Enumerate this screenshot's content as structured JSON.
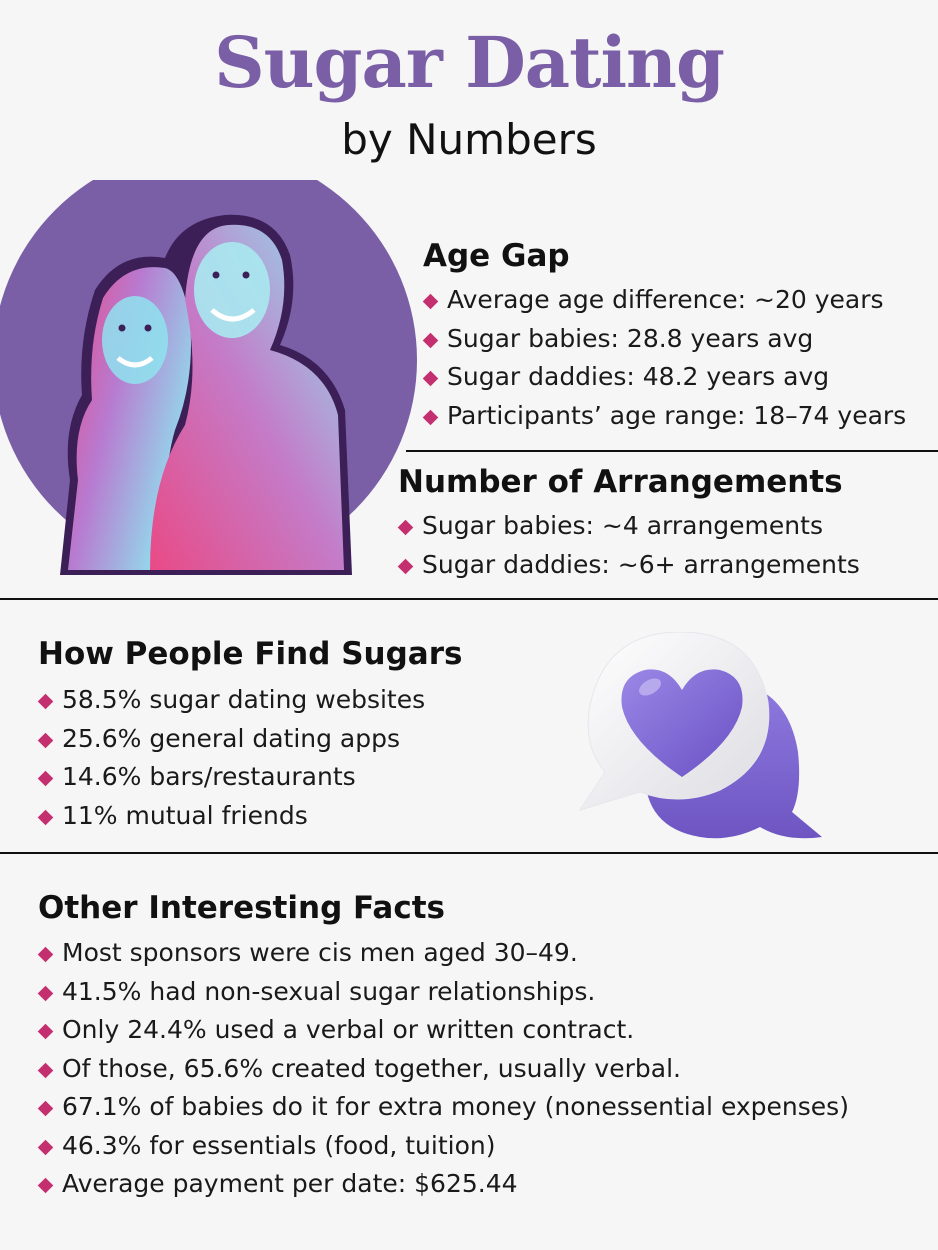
{
  "header": {
    "title": "Sugar Dating",
    "subtitle": "by Numbers"
  },
  "colors": {
    "title": "#7a5fa6",
    "bullet": "#c4306f",
    "circle": "#7a5fa6",
    "photo_cyan": "#8fe3ee",
    "photo_pink": "#e94a86",
    "heart": "#7f6bd0",
    "bubble": "#ffffff"
  },
  "images": {
    "photo": "smiling-couple-duotone-photo",
    "icon": "heart-speech-bubble-icon"
  },
  "sections": {
    "age_gap": {
      "heading": "Age Gap",
      "items": [
        "Average age difference: ~20 years",
        "Sugar babies: 28.8 years avg",
        "Sugar daddies: 48.2 years avg",
        "Participants’ age range: 18–74 years"
      ]
    },
    "arrangements": {
      "heading": "Number of Arrangements",
      "items": [
        "Sugar babies: ~4 arrangements",
        "Sugar daddies: ~6+ arrangements"
      ]
    },
    "find_sugars": {
      "heading": "How People Find Sugars",
      "items": [
        "58.5% sugar dating websites",
        "25.6% general dating apps",
        "14.6% bars/restaurants",
        "11% mutual friends"
      ]
    },
    "other_facts": {
      "heading": "Other Interesting Facts",
      "items": [
        "Most sponsors were cis men aged 30–49.",
        "41.5% had non-sexual sugar relationships.",
        "Only 24.4% used a verbal or written contract.",
        "Of those, 65.6% created together, usually verbal.",
        "67.1% of babies do it for extra money (nonessential expenses)",
        "46.3% for essentials (food, tuition)",
        "Average payment per date: $625.44"
      ]
    }
  }
}
